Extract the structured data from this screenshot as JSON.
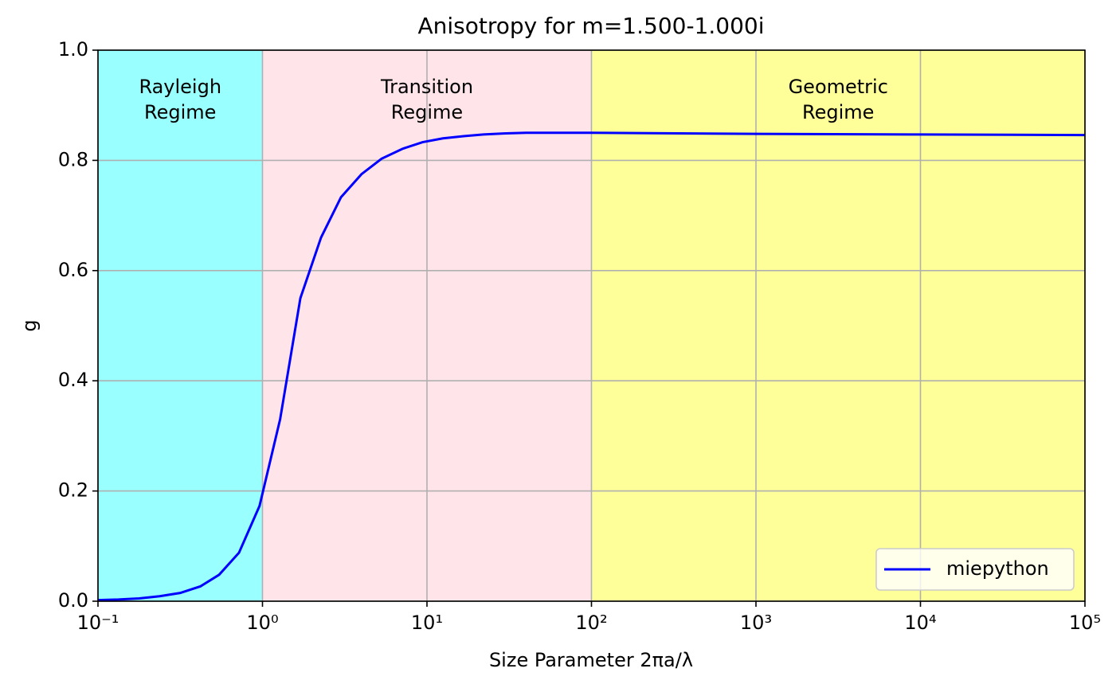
{
  "chart_data": {
    "type": "line",
    "title": "Anisotropy for m=1.500-1.000i",
    "xlabel": "Size Parameter 2πa/λ",
    "ylabel": "g",
    "xscale": "log",
    "grid": true,
    "legend": "lower right",
    "xlim": [
      0.1,
      100000
    ],
    "ylim": [
      0,
      1
    ],
    "xticks": [
      {
        "value": 0.1,
        "label": "10⁻¹"
      },
      {
        "value": 1,
        "label": "10⁰"
      },
      {
        "value": 10,
        "label": "10¹"
      },
      {
        "value": 100,
        "label": "10²"
      },
      {
        "value": 1000,
        "label": "10³"
      },
      {
        "value": 10000,
        "label": "10⁴"
      },
      {
        "value": 100000,
        "label": "10⁵"
      }
    ],
    "yticks": [
      {
        "value": 0,
        "label": "0.0"
      },
      0.2,
      0.4,
      0.6,
      0.8,
      {
        "value": 1,
        "label": "1.0"
      }
    ],
    "regions": [
      {
        "start": 0.1,
        "end": 1,
        "color": "#99ffff",
        "label": [
          "Rayleigh",
          "Regime"
        ]
      },
      {
        "start": 1,
        "end": 100,
        "color": "#ffe4ea",
        "label": [
          "Transition",
          "Regime"
        ]
      },
      {
        "start": 100,
        "end": 100000,
        "color": "#ffff99",
        "label": [
          "Geometric",
          "Regime"
        ]
      }
    ],
    "x": [
      0.1,
      0.133,
      0.178,
      0.237,
      0.316,
      0.42,
      0.545,
      0.72,
      0.96,
      1.28,
      1.7,
      2.27,
      3.0,
      4.0,
      5.3,
      7.1,
      9.4,
      12.5,
      16.7,
      22,
      30,
      40,
      53,
      100,
      1000,
      10000,
      100000
    ],
    "series": [
      {
        "name": "miepython",
        "color": "#0000ff",
        "values": [
          0.002,
          0.003,
          0.005,
          0.009,
          0.015,
          0.027,
          0.048,
          0.088,
          0.173,
          0.33,
          0.55,
          0.66,
          0.733,
          0.775,
          0.803,
          0.821,
          0.833,
          0.84,
          0.844,
          0.847,
          0.849,
          0.85,
          0.85,
          0.85,
          0.848,
          0.847,
          0.846
        ]
      }
    ]
  }
}
